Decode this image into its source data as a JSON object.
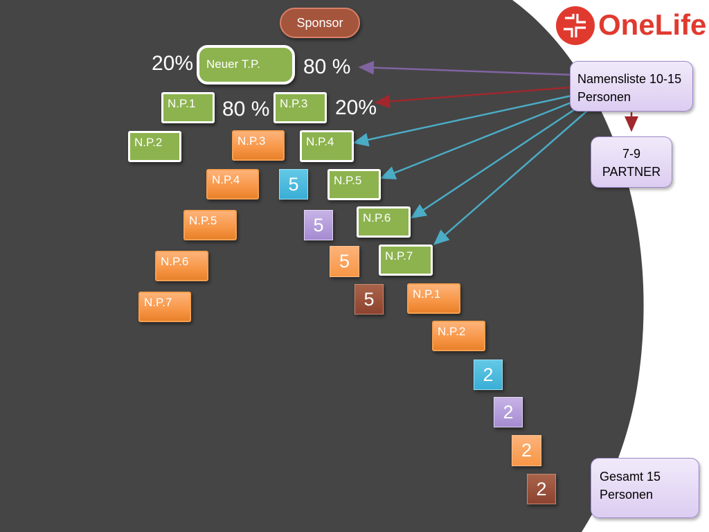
{
  "top": {
    "sponsor": "Sponsor",
    "new_partner": "Neuer T.P."
  },
  "percent": {
    "top_left": "20%",
    "top_right": "80 %",
    "mid_left": "80 %",
    "mid_right": "20%"
  },
  "logo": {
    "text": "OneLife"
  },
  "notes": {
    "name_list": "Namensliste 10-15 Personen",
    "partners": "7-9 PARTNER",
    "total": "Gesamt 15 Personen"
  },
  "left_branch": {
    "np1": "N.P.1",
    "np2": "N.P.2"
  },
  "left_orange": [
    "N.P.3",
    "N.P.4",
    "N.P.5",
    "N.P.6",
    "N.P.7"
  ],
  "right_branch": {
    "np3": "N.P.3",
    "np4": "N.P.4",
    "np5": "N.P.5",
    "np6": "N.P.6",
    "np7": "N.P.7"
  },
  "right_orange": [
    "N.P.1",
    "N.P.2"
  ],
  "fives": [
    "5",
    "5",
    "5",
    "5"
  ],
  "twos": [
    "2",
    "2",
    "2",
    "2"
  ],
  "colors": {
    "background": "#454545",
    "green": "#8db34f",
    "orange": "#f79646",
    "purple_arrow": "#8064a2",
    "red_arrow": "#a0282d",
    "blue_arrow": "#4bacc6"
  }
}
